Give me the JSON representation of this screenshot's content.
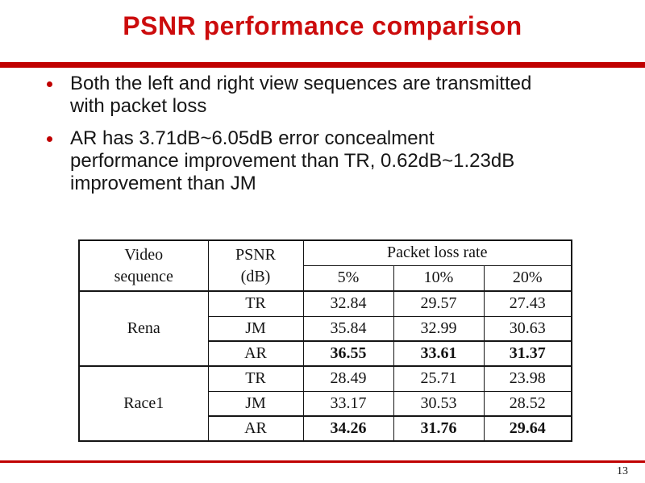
{
  "slide": {
    "title": "PSNR performance comparison",
    "page_number": "13"
  },
  "colors": {
    "accent_red": "#c00000",
    "title_red": "#cc0c0d",
    "text": "#161616",
    "table_border": "#151515"
  },
  "bullets": [
    {
      "lines": [
        "Both the left and right view sequences are transmitted",
        "with packet loss"
      ]
    },
    {
      "lines": [
        "AR has 3.71dB~6.05dB error concealment",
        "performance improvement than TR, 0.62dB~1.23dB",
        "improvement than JM"
      ]
    }
  ],
  "table": {
    "header": {
      "video_sequence": [
        "Video",
        "sequence"
      ],
      "psnr_db": [
        "PSNR",
        "(dB)"
      ],
      "packet_loss_rate": "Packet loss rate",
      "loss_rates": [
        "5%",
        "10%",
        "20%"
      ]
    },
    "groups": [
      {
        "sequence": "Rena",
        "rows": [
          {
            "method": "TR",
            "values": [
              "32.84",
              "29.57",
              "27.43"
            ],
            "bold": false
          },
          {
            "method": "JM",
            "values": [
              "35.84",
              "32.99",
              "30.63"
            ],
            "bold": false
          },
          {
            "method": "AR",
            "values": [
              "36.55",
              "33.61",
              "31.37"
            ],
            "bold": true
          }
        ]
      },
      {
        "sequence": "Race1",
        "rows": [
          {
            "method": "TR",
            "values": [
              "28.49",
              "25.71",
              "23.98"
            ],
            "bold": false
          },
          {
            "method": "JM",
            "values": [
              "33.17",
              "30.53",
              "28.52"
            ],
            "bold": false
          },
          {
            "method": "AR",
            "values": [
              "34.26",
              "31.76",
              "29.64"
            ],
            "bold": true
          }
        ]
      }
    ]
  }
}
